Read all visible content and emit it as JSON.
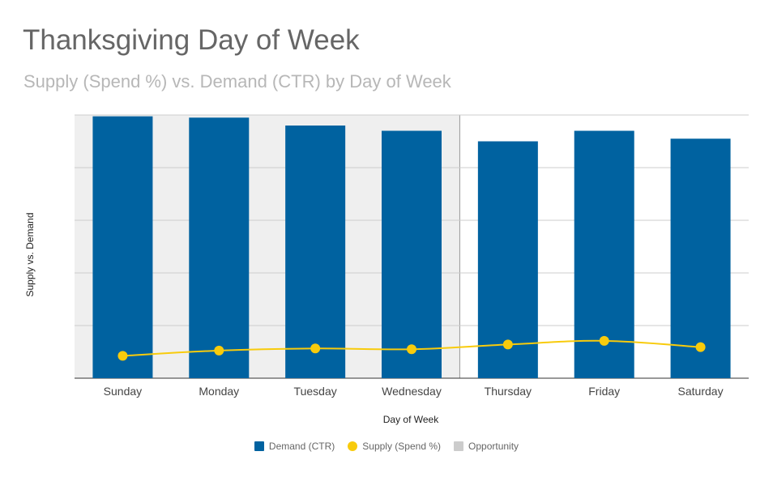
{
  "chart_data": {
    "type": "bar",
    "title": "Thanksgiving Day of Week",
    "subtitle": "Supply (Spend %) vs. Demand (CTR) by Day of Week",
    "xlabel": "Day of Week",
    "ylabel": "Supply vs. Demand",
    "categories": [
      "Sunday",
      "Monday",
      "Tuesday",
      "Wednesday",
      "Thursday",
      "Friday",
      "Saturday"
    ],
    "ylim": [
      0,
      100
    ],
    "grid": true,
    "legend_position": "bottom",
    "series": [
      {
        "name": "Demand (CTR)",
        "type": "bar",
        "color": "#0062a0",
        "values": [
          99.5,
          99.0,
          96.0,
          94.0,
          90.0,
          94.0,
          91.0
        ]
      },
      {
        "name": "Supply (Spend %)",
        "type": "line",
        "color": "#f8cb0c",
        "values": [
          8.5,
          10.5,
          11.3,
          11.0,
          12.8,
          14.2,
          11.8
        ]
      },
      {
        "name": "Opportunity",
        "type": "area",
        "color": "#cccccc",
        "categories_covered": [
          "Sunday",
          "Monday",
          "Tuesday",
          "Wednesday"
        ]
      }
    ]
  }
}
